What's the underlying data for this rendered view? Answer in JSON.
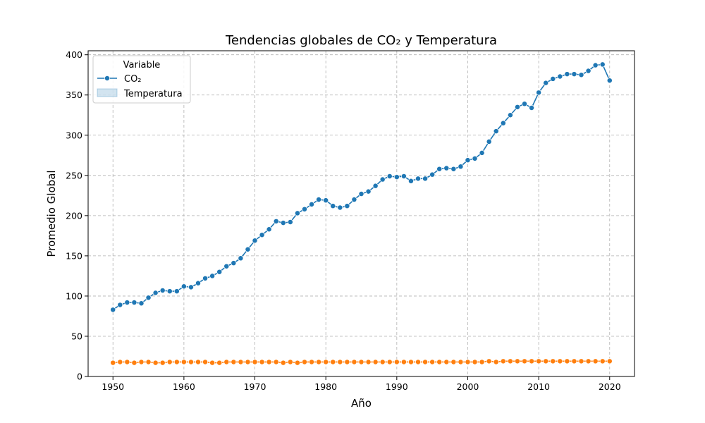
{
  "chart_data": {
    "type": "line",
    "title": "Tendencias globales de CO₂ y Temperatura",
    "xlabel": "Año",
    "ylabel": "Promedio Global",
    "xlim": [
      1946.5,
      2023.5
    ],
    "ylim": [
      0,
      405
    ],
    "x_ticks": [
      1950,
      1960,
      1970,
      1980,
      1990,
      2000,
      2010,
      2020
    ],
    "y_ticks": [
      0,
      50,
      100,
      150,
      200,
      250,
      300,
      350,
      400
    ],
    "grid": true,
    "legend": {
      "title": "Variable",
      "placement": "top-left",
      "entries": [
        "CO₂",
        "Temperatura"
      ]
    },
    "x": [
      1950,
      1951,
      1952,
      1953,
      1954,
      1955,
      1956,
      1957,
      1958,
      1959,
      1960,
      1961,
      1962,
      1963,
      1964,
      1965,
      1966,
      1967,
      1968,
      1969,
      1970,
      1971,
      1972,
      1973,
      1974,
      1975,
      1976,
      1977,
      1978,
      1979,
      1980,
      1981,
      1982,
      1983,
      1984,
      1985,
      1986,
      1987,
      1988,
      1989,
      1990,
      1991,
      1992,
      1993,
      1994,
      1995,
      1996,
      1997,
      1998,
      1999,
      2000,
      2001,
      2002,
      2003,
      2004,
      2005,
      2006,
      2007,
      2008,
      2009,
      2010,
      2011,
      2012,
      2013,
      2014,
      2015,
      2016,
      2017,
      2018,
      2019,
      2020
    ],
    "series": [
      {
        "name": "CO₂",
        "color": "#1f77b4",
        "values": [
          83,
          89,
          92,
          92,
          91,
          98,
          104,
          107,
          106,
          106,
          112,
          111,
          116,
          122,
          125,
          130,
          137,
          141,
          147,
          158,
          169,
          176,
          183,
          193,
          191,
          192,
          203,
          208,
          214,
          220,
          219,
          212,
          210,
          212,
          220,
          227,
          230,
          237,
          245,
          249,
          248,
          249,
          243,
          246,
          246,
          251,
          258,
          259,
          258,
          261,
          269,
          271,
          278,
          292,
          305,
          315,
          325,
          335,
          339,
          334,
          353,
          365,
          370,
          373,
          376,
          376,
          375,
          380,
          387,
          388,
          368
        ]
      },
      {
        "name": "Temperatura",
        "color": "#ff7f0e",
        "values": [
          17,
          18,
          18,
          17,
          18,
          18,
          17,
          17,
          18,
          18,
          18,
          18,
          18,
          18,
          17,
          17,
          18,
          18,
          18,
          18,
          18,
          18,
          18,
          18,
          17,
          18,
          17,
          18,
          18,
          18,
          18,
          18,
          18,
          18,
          18,
          18,
          18,
          18,
          18,
          18,
          18,
          18,
          18,
          18,
          18,
          18,
          18,
          18,
          18,
          18,
          18,
          18,
          18,
          19,
          18,
          19,
          19,
          19,
          19,
          19,
          19,
          19,
          19,
          19,
          19,
          19,
          19,
          19,
          19,
          19,
          19
        ]
      }
    ]
  }
}
